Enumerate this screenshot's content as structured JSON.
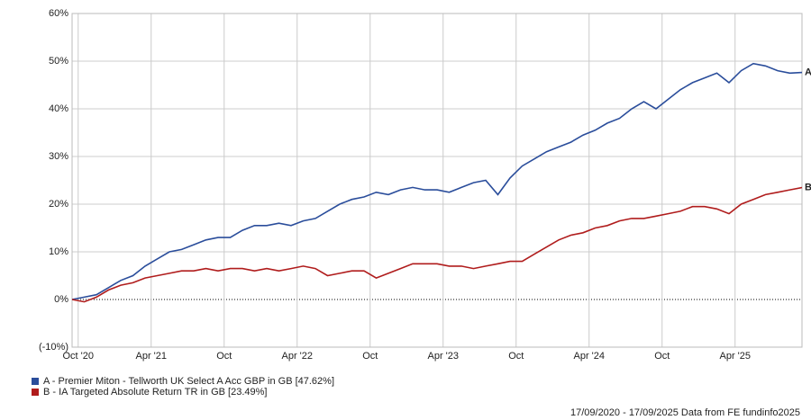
{
  "chart_data": {
    "type": "line",
    "x": [
      0,
      1,
      2,
      3,
      4,
      5,
      6,
      7,
      8,
      9,
      10,
      11,
      12,
      13,
      14,
      15,
      16,
      17,
      18,
      19,
      20,
      21,
      22,
      23,
      24,
      25,
      26,
      27,
      28,
      29,
      30,
      31,
      32,
      33,
      34,
      35,
      36,
      37,
      38,
      39,
      40,
      41,
      42,
      43,
      44,
      45,
      46,
      47,
      48,
      49,
      50,
      51,
      52,
      53,
      54,
      55,
      56,
      57,
      58,
      59,
      60
    ],
    "xlim": [
      0,
      60
    ],
    "xticks": [
      {
        "value": 0.5,
        "label": "Oct '20"
      },
      {
        "value": 6.5,
        "label": "Apr '21"
      },
      {
        "value": 12.5,
        "label": "Oct"
      },
      {
        "value": 18.5,
        "label": "Apr '22"
      },
      {
        "value": 24.5,
        "label": "Oct"
      },
      {
        "value": 30.5,
        "label": "Apr '23"
      },
      {
        "value": 36.5,
        "label": "Oct"
      },
      {
        "value": 42.5,
        "label": "Apr '24"
      },
      {
        "value": 48.5,
        "label": "Oct"
      },
      {
        "value": 54.5,
        "label": "Apr '25"
      }
    ],
    "ylim": [
      -10,
      60
    ],
    "yticks": [
      {
        "value": -10,
        "label": "(-10%)"
      },
      {
        "value": 0,
        "label": "0%"
      },
      {
        "value": 10,
        "label": "10%"
      },
      {
        "value": 20,
        "label": "20%"
      },
      {
        "value": 30,
        "label": "30%"
      },
      {
        "value": 40,
        "label": "40%"
      },
      {
        "value": 50,
        "label": "50%"
      },
      {
        "value": 60,
        "label": "60%"
      }
    ],
    "grid": true,
    "series": [
      {
        "name": "A - Premier Miton - Tellworth UK Select A Acc GBP in GB [47.62%]",
        "tag": "A",
        "color": "#2a4d9b",
        "values": [
          0,
          0.5,
          1,
          2.5,
          4,
          5,
          7,
          8.5,
          10,
          10.5,
          11.5,
          12.5,
          13,
          13,
          14.5,
          15.5,
          15.5,
          16,
          15.5,
          16.5,
          17,
          18.5,
          20,
          21,
          21.5,
          22.5,
          22,
          23,
          23.5,
          23,
          23,
          22.5,
          23.5,
          24.5,
          25,
          22,
          25.5,
          28,
          29.5,
          31,
          32,
          33,
          34.5,
          35.5,
          37,
          38,
          40,
          41.5,
          40,
          42,
          44,
          45.5,
          46.5,
          47.5,
          45.5,
          48,
          49.5,
          49,
          48,
          47.5,
          47.62
        ]
      },
      {
        "name": "B - IA Targeted Absolute Return TR in GB [23.49%]",
        "tag": "B",
        "color": "#b01c1c",
        "values": [
          0,
          -0.5,
          0.5,
          2,
          3,
          3.5,
          4.5,
          5,
          5.5,
          6,
          6,
          6.5,
          6,
          6.5,
          6.5,
          6,
          6.5,
          6,
          6.5,
          7,
          6.5,
          5,
          5.5,
          6,
          6,
          4.5,
          5.5,
          6.5,
          7.5,
          7.5,
          7.5,
          7,
          7,
          6.5,
          7,
          7.5,
          8,
          8,
          9.5,
          11,
          12.5,
          13.5,
          14,
          15,
          15.5,
          16.5,
          17,
          17,
          17.5,
          18,
          18.5,
          19.5,
          19.5,
          19,
          18,
          20,
          21,
          22,
          22.5,
          23,
          23.49
        ]
      }
    ],
    "footer": "17/09/2020 - 17/09/2025 Data from FE fundinfo2025"
  }
}
